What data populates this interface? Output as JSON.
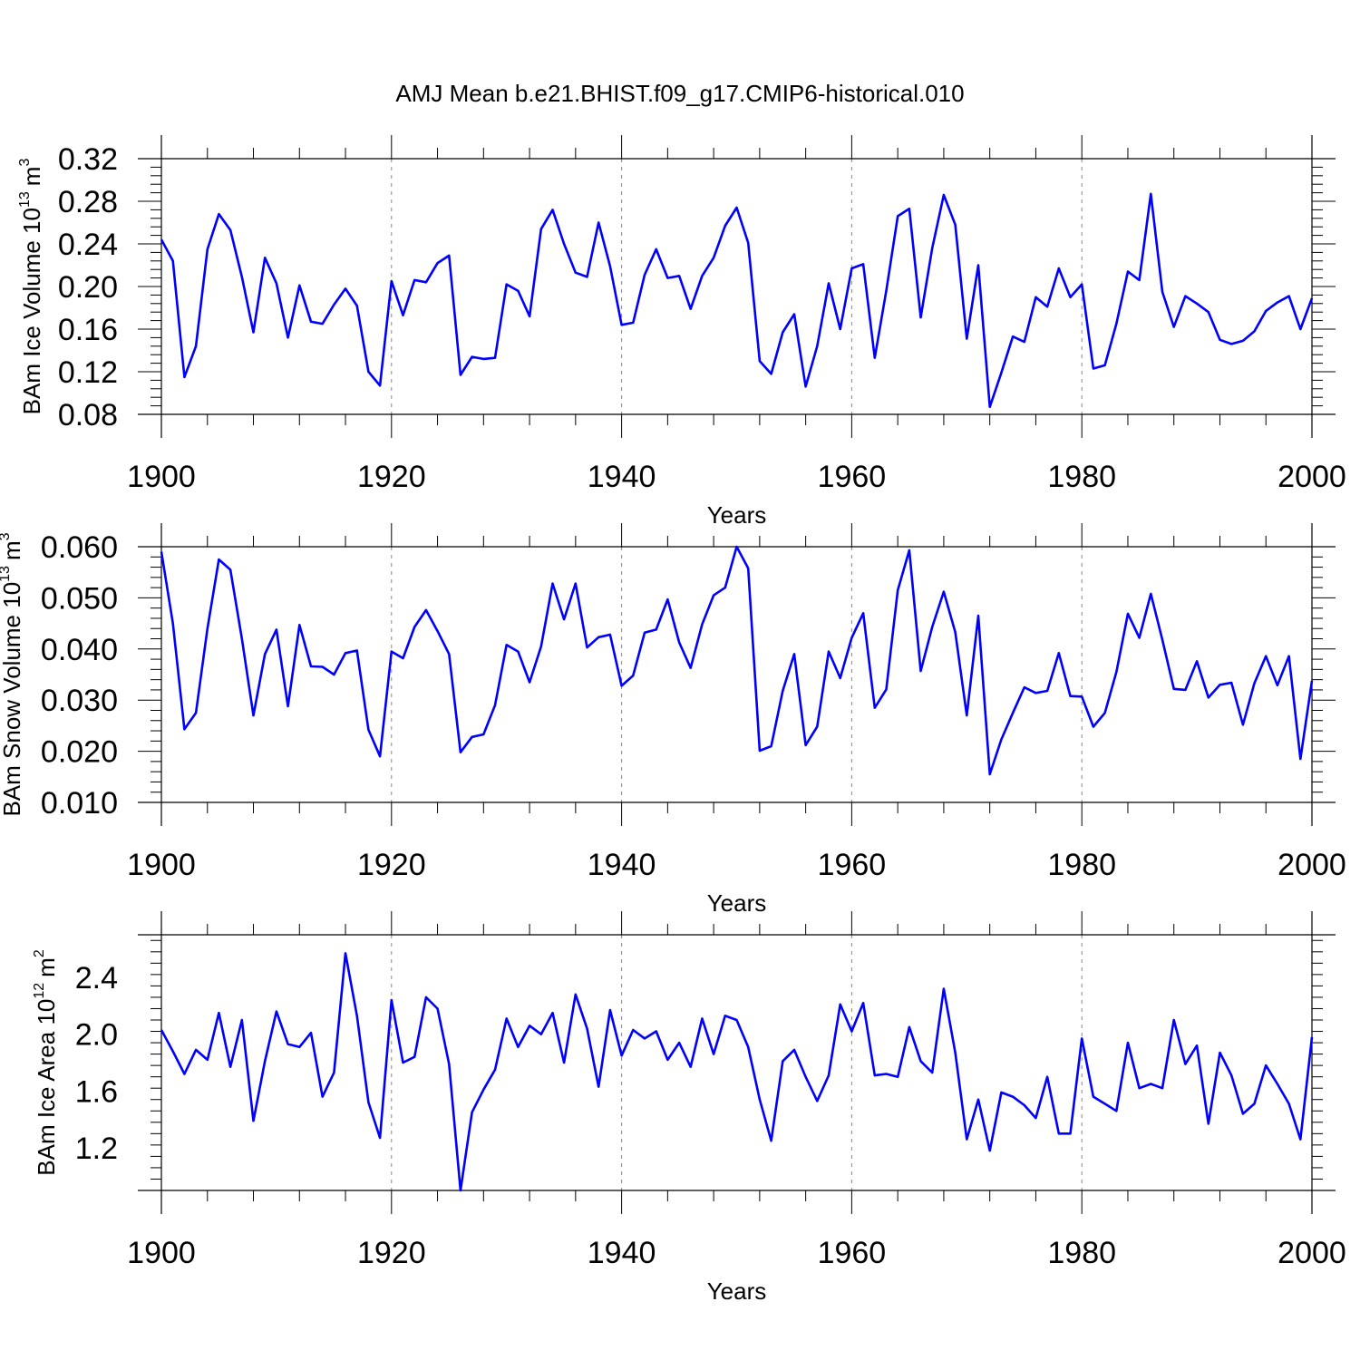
{
  "title": "AMJ Mean b.e21.BHIST.f09_g17.CMIP6-historical.010",
  "colors": {
    "line": "#0000ff",
    "axis": "#000000",
    "grid": "#888888"
  },
  "chart_data": [
    {
      "type": "line",
      "ylabel_main": "BAm Ice Volume 10",
      "ylabel_exp": "13",
      "ylabel_unit": "m",
      "ylabel_unit_exp": "3",
      "xlabel": "Years",
      "xlim": [
        1900,
        2000
      ],
      "ylim": [
        0.08,
        0.32
      ],
      "xticks": [
        1900,
        1920,
        1940,
        1960,
        1980,
        2000
      ],
      "xtick_labels": [
        "1900",
        "1920",
        "1940",
        "1960",
        "1980",
        "2000"
      ],
      "yticks": [
        0.08,
        0.12,
        0.16,
        0.2,
        0.24,
        0.28,
        0.32
      ],
      "ytick_labels": [
        "0.08",
        "0.12",
        "0.16",
        "0.20",
        "0.24",
        "0.28",
        "0.32"
      ],
      "grid_x": [
        1920,
        1940,
        1960,
        1980
      ],
      "x_start": 1900,
      "series": [
        {
          "name": "BAm Ice Volume",
          "values": [
            0.244,
            0.224,
            0.115,
            0.144,
            0.235,
            0.268,
            0.253,
            0.209,
            0.157,
            0.227,
            0.203,
            0.152,
            0.201,
            0.167,
            0.165,
            0.183,
            0.198,
            0.182,
            0.12,
            0.107,
            0.205,
            0.173,
            0.206,
            0.204,
            0.222,
            0.229,
            0.117,
            0.134,
            0.132,
            0.133,
            0.202,
            0.196,
            0.172,
            0.254,
            0.272,
            0.24,
            0.213,
            0.209,
            0.26,
            0.219,
            0.164,
            0.166,
            0.211,
            0.235,
            0.208,
            0.21,
            0.179,
            0.21,
            0.227,
            0.257,
            0.274,
            0.241,
            0.13,
            0.118,
            0.157,
            0.174,
            0.106,
            0.144,
            0.203,
            0.16,
            0.217,
            0.221,
            0.133,
            0.196,
            0.266,
            0.273,
            0.171,
            0.236,
            0.286,
            0.258,
            0.151,
            0.22,
            0.087,
            0.119,
            0.153,
            0.148,
            0.19,
            0.181,
            0.217,
            0.19,
            0.202,
            0.123,
            0.126,
            0.165,
            0.214,
            0.206,
            0.287,
            0.195,
            0.162,
            0.191,
            0.184,
            0.176,
            0.15,
            0.146,
            0.149,
            0.158,
            0.177,
            0.185,
            0.191,
            0.16,
            0.189
          ]
        }
      ]
    },
    {
      "type": "line",
      "ylabel_main": "BAm Snow Volume 10",
      "ylabel_exp": "13",
      "ylabel_unit": "m",
      "ylabel_unit_exp": "3",
      "xlabel": "Years",
      "xlim": [
        1900,
        2000
      ],
      "ylim": [
        0.01,
        0.06
      ],
      "xticks": [
        1900,
        1920,
        1940,
        1960,
        1980,
        2000
      ],
      "xtick_labels": [
        "1900",
        "1920",
        "1940",
        "1960",
        "1980",
        "2000"
      ],
      "yticks": [
        0.01,
        0.02,
        0.03,
        0.04,
        0.05,
        0.06
      ],
      "ytick_labels": [
        "0.010",
        "0.020",
        "0.030",
        "0.040",
        "0.050",
        "0.060"
      ],
      "grid_x": [
        1920,
        1940,
        1960,
        1980
      ],
      "x_start": 1900,
      "series": [
        {
          "name": "BAm Snow Volume",
          "values": [
            0.059,
            0.045,
            0.0243,
            0.0275,
            0.044,
            0.0575,
            0.0555,
            0.042,
            0.027,
            0.039,
            0.0438,
            0.0288,
            0.0447,
            0.0366,
            0.0365,
            0.035,
            0.0392,
            0.0397,
            0.0242,
            0.019,
            0.0395,
            0.0382,
            0.0443,
            0.0476,
            0.0435,
            0.039,
            0.0198,
            0.0228,
            0.0233,
            0.029,
            0.0408,
            0.0395,
            0.0335,
            0.0405,
            0.0528,
            0.0458,
            0.0528,
            0.0403,
            0.0423,
            0.0428,
            0.0328,
            0.0348,
            0.0432,
            0.0438,
            0.0497,
            0.0413,
            0.0363,
            0.0448,
            0.0505,
            0.052,
            0.06,
            0.0558,
            0.0201,
            0.021,
            0.0318,
            0.039,
            0.0212,
            0.0248,
            0.0395,
            0.0343,
            0.0422,
            0.047,
            0.0285,
            0.0321,
            0.0515,
            0.0593,
            0.0357,
            0.0443,
            0.0512,
            0.0433,
            0.027,
            0.0465,
            0.0155,
            0.0223,
            0.0275,
            0.0325,
            0.0314,
            0.0318,
            0.0392,
            0.0308,
            0.0307,
            0.0248,
            0.0275,
            0.0355,
            0.0469,
            0.0422,
            0.0508,
            0.0418,
            0.0322,
            0.032,
            0.0376,
            0.0305,
            0.033,
            0.0334,
            0.0252,
            0.0333,
            0.0386,
            0.0329,
            0.0386,
            0.0185,
            0.0338
          ]
        }
      ]
    },
    {
      "type": "line",
      "ylabel_main": "BAm Ice Area 10",
      "ylabel_exp": "12",
      "ylabel_unit": "m",
      "ylabel_unit_exp": "2",
      "xlabel": "Years",
      "xlim": [
        1900,
        2000
      ],
      "ylim": [
        0.9,
        2.7
      ],
      "xticks": [
        1900,
        1920,
        1940,
        1960,
        1980,
        2000
      ],
      "xtick_labels": [
        "1900",
        "1920",
        "1940",
        "1960",
        "1980",
        "2000"
      ],
      "yticks": [
        1.2,
        1.6,
        2.0,
        2.4
      ],
      "ytick_labels": [
        "1.2",
        "1.6",
        "2.0",
        "2.4"
      ],
      "grid_x": [
        1920,
        1940,
        1960,
        1980
      ],
      "x_start": 1900,
      "series": [
        {
          "name": "BAm Ice Area",
          "values": [
            2.03,
            1.88,
            1.72,
            1.89,
            1.82,
            2.15,
            1.77,
            2.1,
            1.39,
            1.81,
            2.16,
            1.93,
            1.91,
            2.01,
            1.56,
            1.73,
            2.57,
            2.13,
            1.52,
            1.27,
            2.24,
            1.8,
            1.84,
            2.26,
            2.18,
            1.79,
            0.9,
            1.45,
            1.61,
            1.75,
            2.11,
            1.91,
            2.06,
            2.0,
            2.15,
            1.8,
            2.28,
            2.04,
            1.63,
            2.17,
            1.85,
            2.03,
            1.97,
            2.02,
            1.82,
            1.94,
            1.77,
            2.11,
            1.86,
            2.13,
            2.1,
            1.91,
            1.54,
            1.25,
            1.81,
            1.89,
            1.7,
            1.53,
            1.71,
            2.21,
            2.02,
            2.22,
            1.71,
            1.72,
            1.7,
            2.05,
            1.81,
            1.73,
            2.32,
            1.87,
            1.26,
            1.54,
            1.18,
            1.59,
            1.56,
            1.5,
            1.41,
            1.7,
            1.3,
            1.3,
            1.97,
            1.56,
            1.51,
            1.46,
            1.94,
            1.62,
            1.65,
            1.62,
            2.1,
            1.79,
            1.92,
            1.37,
            1.87,
            1.71,
            1.44,
            1.51,
            1.78,
            1.65,
            1.51,
            1.26,
            1.98
          ]
        }
      ]
    }
  ]
}
